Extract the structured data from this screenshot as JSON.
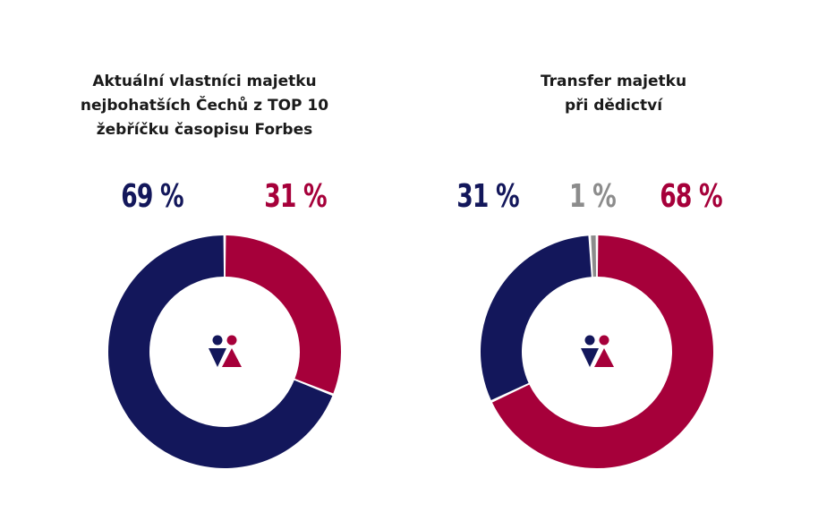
{
  "colors": {
    "navy": "#13175b",
    "crimson": "#a6003a",
    "gray": "#8c8c8c"
  },
  "icon": "male-female-icon",
  "chart_data": [
    {
      "type": "pie",
      "title": "Aktuální vlastníci majetku\nnejbohatších Čechů z TOP 10\nžebříčku časopisu Forbes",
      "slices": [
        {
          "label": "69 %",
          "value": 69,
          "color": "#13175b"
        },
        {
          "label": "31 %",
          "value": 31,
          "color": "#a6003a"
        }
      ]
    },
    {
      "type": "pie",
      "title": "Transfer majetku\npři dědictví",
      "slices": [
        {
          "label": "31 %",
          "value": 31,
          "color": "#13175b"
        },
        {
          "label": "1 %",
          "value": 1,
          "color": "#8c8c8c"
        },
        {
          "label": "68 %",
          "value": 68,
          "color": "#a6003a"
        }
      ]
    }
  ]
}
